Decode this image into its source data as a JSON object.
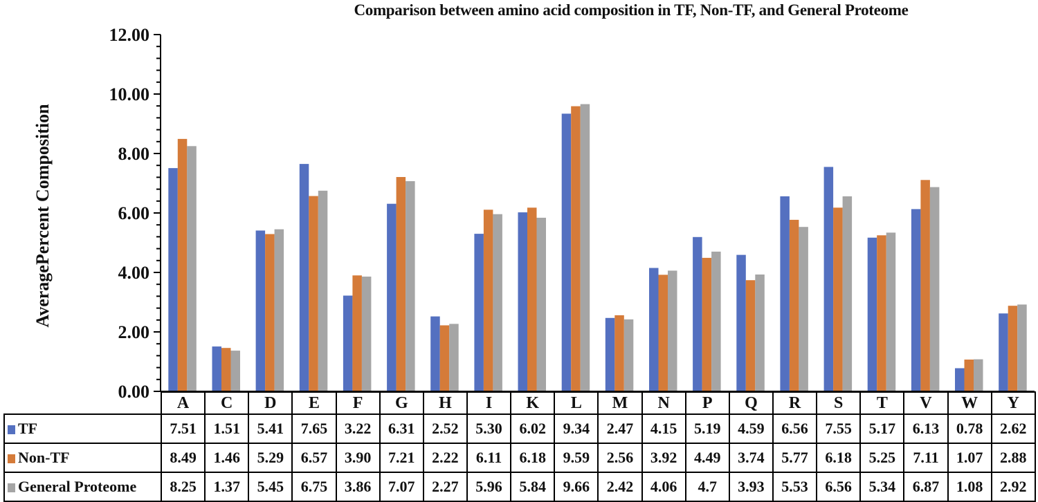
{
  "chart_data": {
    "type": "bar",
    "title": "Comparison between amino acid composition in TF, Non-TF, and General Proteome",
    "xlabel": "",
    "ylabel": "AveragePercent Composition",
    "ylim": [
      0,
      12
    ],
    "yticks": [
      "0.00",
      "2.00",
      "4.00",
      "6.00",
      "8.00",
      "10.00",
      "12.00"
    ],
    "grid": false,
    "legend_position": "data-table",
    "categories": [
      "A",
      "C",
      "D",
      "E",
      "F",
      "G",
      "H",
      "I",
      "K",
      "L",
      "M",
      "N",
      "P",
      "Q",
      "R",
      "S",
      "T",
      "V",
      "W",
      "Y"
    ],
    "series": [
      {
        "name": "TF",
        "color": "#5470c0",
        "values": [
          7.51,
          1.51,
          5.41,
          7.65,
          3.22,
          6.31,
          2.52,
          5.3,
          6.02,
          9.34,
          2.47,
          4.15,
          5.19,
          4.59,
          6.56,
          7.55,
          5.17,
          6.13,
          0.78,
          2.62
        ],
        "labels": [
          "7.51",
          "1.51",
          "5.41",
          "7.65",
          "3.22",
          "6.31",
          "2.52",
          "5.30",
          "6.02",
          "9.34",
          "2.47",
          "4.15",
          "5.19",
          "4.59",
          "6.56",
          "7.55",
          "5.17",
          "6.13",
          "0.78",
          "2.62"
        ]
      },
      {
        "name": "Non-TF",
        "color": "#d57b39",
        "values": [
          8.49,
          1.46,
          5.29,
          6.57,
          3.9,
          7.21,
          2.22,
          6.11,
          6.18,
          9.59,
          2.56,
          3.92,
          4.49,
          3.74,
          5.77,
          6.18,
          5.25,
          7.11,
          1.07,
          2.88
        ],
        "labels": [
          "8.49",
          "1.46",
          "5.29",
          "6.57",
          "3.90",
          "7.21",
          "2.22",
          "6.11",
          "6.18",
          "9.59",
          "2.56",
          "3.92",
          "4.49",
          "3.74",
          "5.77",
          "6.18",
          "5.25",
          "7.11",
          "1.07",
          "2.88"
        ]
      },
      {
        "name": "General Proteome",
        "color": "#a5a5a5",
        "values": [
          8.25,
          1.37,
          5.45,
          6.75,
          3.86,
          7.07,
          2.27,
          5.96,
          5.84,
          9.66,
          2.42,
          4.06,
          4.7,
          3.93,
          5.53,
          6.56,
          5.34,
          6.87,
          1.08,
          2.92
        ],
        "labels": [
          "8.25",
          "1.37",
          "5.45",
          "6.75",
          "3.86",
          "7.07",
          "2.27",
          "5.96",
          "5.84",
          "9.66",
          "2.42",
          "4.06",
          "4.7",
          "3.93",
          "5.53",
          "6.56",
          "5.34",
          "6.87",
          "1.08",
          "2.92"
        ]
      }
    ]
  }
}
